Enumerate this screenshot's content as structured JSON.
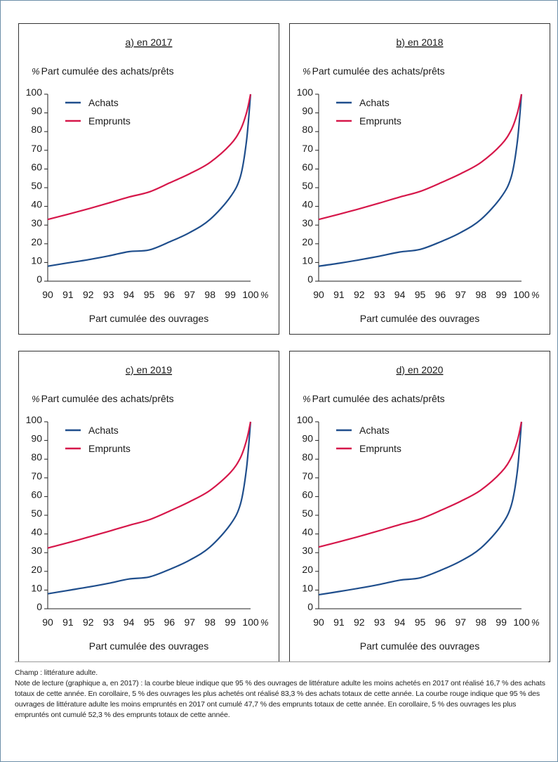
{
  "notes": {
    "champ": "Champ : littérature adulte.",
    "lecture": "Note de lecture (graphique a, en 2017) : la courbe bleue indique que 95 % des ouvrages de littérature adulte les moins achetés en 2017 ont réalisé 16,7 % des achats totaux de cette année. En corollaire, 5 % des ouvrages les plus achetés ont réalisé 83,3 % des achats totaux de cette année. La courbe rouge indique que 95 % des ouvrages de littérature adulte les moins empruntés en 2017 ont cumulé 47,7 % des emprunts totaux de cette année. En corollaire, 5 % des ouvrages les plus empruntés ont cumulé 52,3 % des emprunts totaux de cette année."
  },
  "chart_data": [
    {
      "type": "line",
      "title": "a) en 2017",
      "ylabel": "Part cumulée des achats/prêts",
      "ylabel_unit": "%",
      "xlabel": "Part cumulée des ouvrages",
      "xlabel_unit": "%",
      "xlim": [
        90,
        100
      ],
      "ylim": [
        0,
        100
      ],
      "xticks": [
        "90",
        "91",
        "92",
        "93",
        "94",
        "95",
        "96",
        "97",
        "98",
        "99",
        "100"
      ],
      "yticks": [
        "0",
        "10",
        "20",
        "30",
        "40",
        "50",
        "60",
        "70",
        "80",
        "90",
        "100"
      ],
      "legend_position": "top-left",
      "x": [
        90,
        91,
        92,
        93,
        94,
        95,
        96,
        97,
        98,
        99,
        99.5,
        99.8,
        100
      ],
      "series": [
        {
          "name": "Achats",
          "color": "#1f4e8c",
          "values": [
            8,
            9.8,
            11.5,
            13.5,
            15.8,
            16.7,
            21,
            26,
            33,
            45,
            56,
            75,
            100
          ]
        },
        {
          "name": "Emprunts",
          "color": "#d6174a",
          "values": [
            33,
            35.8,
            38.7,
            41.8,
            45,
            47.7,
            52.5,
            57.5,
            63.5,
            73,
            81,
            90,
            100
          ]
        }
      ]
    },
    {
      "type": "line",
      "title": "b) en 2018",
      "ylabel": "Part cumulée des achats/prêts",
      "ylabel_unit": "%",
      "xlabel": "Part cumulée des ouvrages",
      "xlabel_unit": "%",
      "xlim": [
        90,
        100
      ],
      "ylim": [
        0,
        100
      ],
      "xticks": [
        "90",
        "91",
        "92",
        "93",
        "94",
        "95",
        "96",
        "97",
        "98",
        "99",
        "100"
      ],
      "yticks": [
        "0",
        "10",
        "20",
        "30",
        "40",
        "50",
        "60",
        "70",
        "80",
        "90",
        "100"
      ],
      "legend_position": "top-left",
      "x": [
        90,
        91,
        92,
        93,
        94,
        95,
        96,
        97,
        98,
        99,
        99.5,
        99.8,
        100
      ],
      "series": [
        {
          "name": "Achats",
          "color": "#1f4e8c",
          "values": [
            8,
            9.6,
            11.4,
            13.4,
            15.6,
            17,
            21,
            26,
            33,
            45,
            56,
            75,
            100
          ]
        },
        {
          "name": "Emprunts",
          "color": "#d6174a",
          "values": [
            33,
            35.8,
            38.7,
            41.8,
            45,
            48,
            52.5,
            57.5,
            63.5,
            73,
            81,
            90,
            100
          ]
        }
      ]
    },
    {
      "type": "line",
      "title": "c) en 2019",
      "ylabel": "Part cumulée des achats/prêts",
      "ylabel_unit": "%",
      "xlabel": "Part cumulée des ouvrages",
      "xlabel_unit": "%",
      "xlim": [
        90,
        100
      ],
      "ylim": [
        0,
        100
      ],
      "xticks": [
        "90",
        "91",
        "92",
        "93",
        "94",
        "95",
        "96",
        "97",
        "98",
        "99",
        "100"
      ],
      "yticks": [
        "0",
        "10",
        "20",
        "30",
        "40",
        "50",
        "60",
        "70",
        "80",
        "90",
        "100"
      ],
      "legend_position": "top-left",
      "x": [
        90,
        91,
        92,
        93,
        94,
        95,
        96,
        97,
        98,
        99,
        99.5,
        99.8,
        100
      ],
      "series": [
        {
          "name": "Achats",
          "color": "#1f4e8c",
          "values": [
            8,
            9.8,
            11.6,
            13.6,
            15.9,
            17,
            21,
            26,
            33,
            45,
            56,
            75,
            100
          ]
        },
        {
          "name": "Emprunts",
          "color": "#d6174a",
          "values": [
            32.5,
            35.3,
            38.3,
            41.4,
            44.6,
            47.6,
            52.2,
            57.3,
            63.3,
            72.8,
            80.8,
            90,
            100
          ]
        }
      ]
    },
    {
      "type": "line",
      "title": "d) en 2020",
      "ylabel": "Part cumulée des achats/prêts",
      "ylabel_unit": "%",
      "xlabel": "Part cumulée des ouvrages",
      "xlabel_unit": "%",
      "xlim": [
        90,
        100
      ],
      "ylim": [
        0,
        100
      ],
      "xticks": [
        "90",
        "91",
        "92",
        "93",
        "94",
        "95",
        "96",
        "97",
        "98",
        "99",
        "100"
      ],
      "yticks": [
        "0",
        "10",
        "20",
        "30",
        "40",
        "50",
        "60",
        "70",
        "80",
        "90",
        "100"
      ],
      "legend_position": "top-left",
      "x": [
        90,
        91,
        92,
        93,
        94,
        95,
        96,
        97,
        98,
        99,
        99.5,
        99.8,
        100
      ],
      "series": [
        {
          "name": "Achats",
          "color": "#1f4e8c",
          "values": [
            7.5,
            9.2,
            11,
            13,
            15.3,
            16.5,
            20.5,
            25.5,
            32.5,
            44.5,
            55.5,
            74,
            100
          ]
        },
        {
          "name": "Emprunts",
          "color": "#d6174a",
          "values": [
            33,
            35.8,
            38.7,
            41.8,
            45,
            48,
            52.5,
            57.5,
            63.5,
            73,
            81,
            90,
            100
          ]
        }
      ]
    }
  ]
}
